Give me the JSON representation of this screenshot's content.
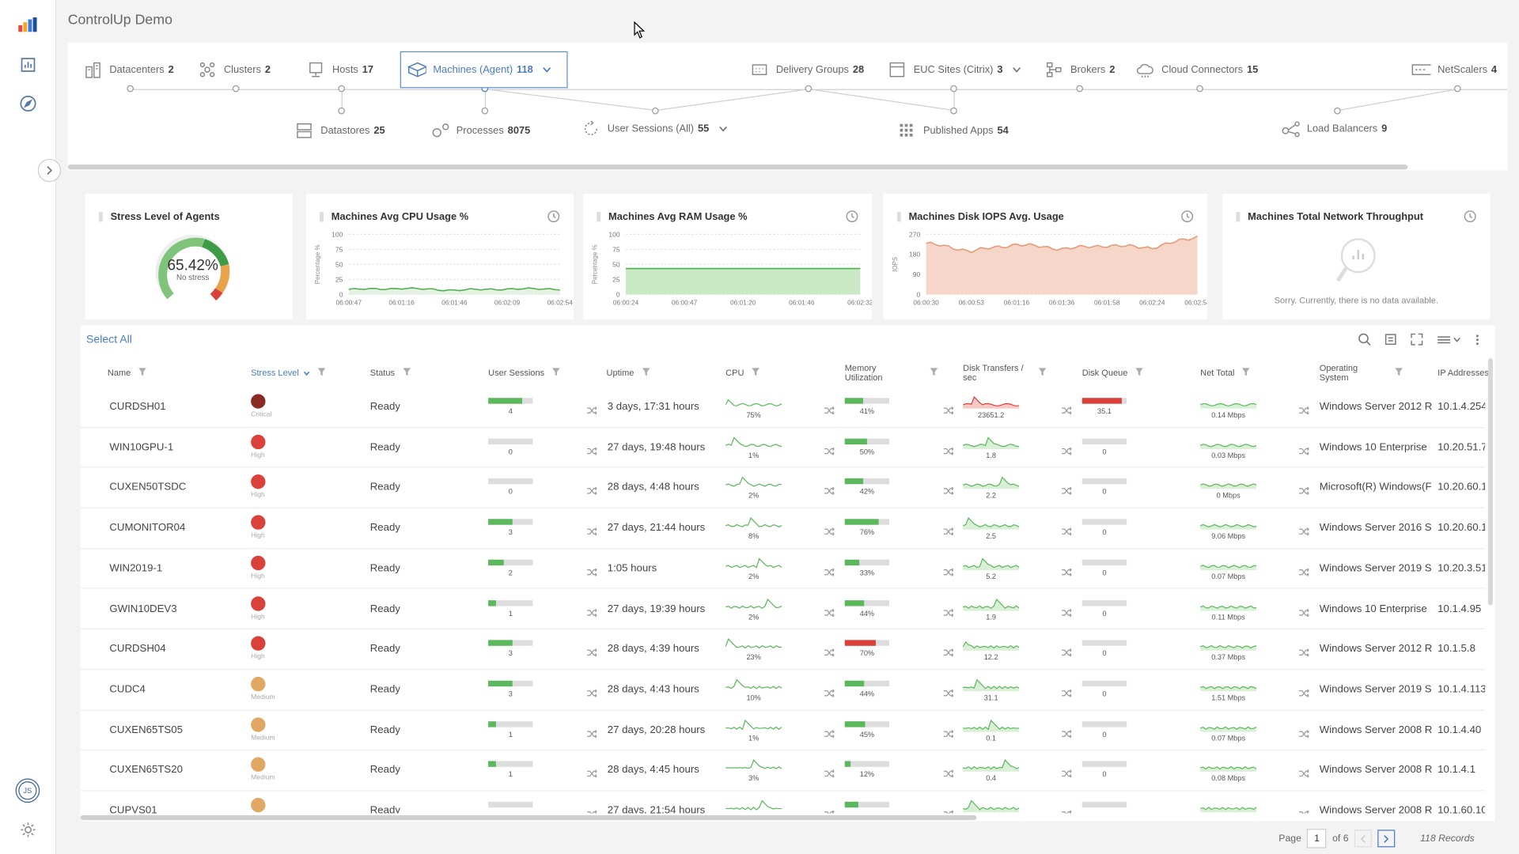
{
  "app_title": "ControlUp Demo",
  "topology": {
    "row1": [
      {
        "label": "Datacenters",
        "count": "2",
        "icon": "datacenter-icon"
      },
      {
        "label": "Clusters",
        "count": "2",
        "icon": "cluster-icon"
      },
      {
        "label": "Hosts",
        "count": "17",
        "icon": "host-icon"
      },
      {
        "label": "Machines (Agent)",
        "count": "118",
        "icon": "machine-icon"
      },
      {
        "label": "Delivery Groups",
        "count": "28",
        "icon": "delivery-group-icon"
      },
      {
        "label": "EUC Sites (Citrix)",
        "count": "3",
        "icon": "site-icon"
      },
      {
        "label": "Brokers",
        "count": "2",
        "icon": "broker-icon"
      },
      {
        "label": "Cloud Connectors",
        "count": "15",
        "icon": "cloud-icon"
      },
      {
        "label": "NetScalers",
        "count": "4",
        "icon": "netscaler-icon"
      }
    ],
    "row2": [
      {
        "label": "Datastores",
        "count": "25",
        "icon": "datastore-icon"
      },
      {
        "label": "Processes",
        "count": "8075",
        "icon": "process-icon"
      },
      {
        "label": "User Sessions (All)",
        "count": "55",
        "icon": "session-icon"
      },
      {
        "label": "Published Apps",
        "count": "54",
        "icon": "apps-icon"
      },
      {
        "label": "Load Balancers",
        "count": "9",
        "icon": "load-balancer-icon"
      }
    ]
  },
  "cards": {
    "stress": {
      "title": "Stress Level of Agents",
      "value": "65.42%",
      "sub": "No stress"
    },
    "cpu": {
      "title": "Machines Avg CPU Usage %",
      "ylabel": "Percentage %",
      "yticks": [
        "100",
        "75",
        "50",
        "25",
        "0"
      ],
      "xticks": [
        "06:00:47",
        "06:01:16",
        "06:01:46",
        "06:02:09",
        "06:02:54"
      ]
    },
    "ram": {
      "title": "Machines Avg RAM Usage %",
      "ylabel": "Percentage %",
      "yticks": [
        "100",
        "75",
        "50",
        "25",
        "0"
      ],
      "xticks": [
        "06:00:24",
        "06:00:47",
        "06:01:20",
        "06:01:46",
        "06:02:32"
      ]
    },
    "iops": {
      "title": "Machines Disk IOPS Avg. Usage",
      "ylabel": "IOPS",
      "yticks": [
        "270",
        "180",
        "90",
        "0"
      ],
      "xticks": [
        "06:00:30",
        "06:00:53",
        "06:01:16",
        "06:01:36",
        "06:01:58",
        "06:02:24",
        "06:02:54"
      ]
    },
    "net": {
      "title": "Machines Total Network Throughput",
      "empty": "Sorry. Currently, there is no data available."
    }
  },
  "chart_data": [
    {
      "type": "line",
      "title": "Machines Avg CPU Usage %",
      "ylabel": "Percentage %",
      "ylim": [
        0,
        100
      ],
      "x": [
        "06:00:47",
        "06:01:16",
        "06:01:46",
        "06:02:09",
        "06:02:54"
      ],
      "series": [
        {
          "values": [
            8,
            10,
            7,
            9,
            9
          ]
        }
      ]
    },
    {
      "type": "area",
      "title": "Machines Avg RAM Usage %",
      "ylabel": "Percentage %",
      "ylim": [
        0,
        100
      ],
      "x": [
        "06:00:24",
        "06:00:47",
        "06:01:20",
        "06:01:46",
        "06:02:32"
      ],
      "series": [
        {
          "values": [
            43,
            43,
            43,
            43,
            43
          ]
        }
      ]
    },
    {
      "type": "area",
      "title": "Machines Disk IOPS Avg. Usage",
      "ylabel": "IOPS",
      "ylim": [
        0,
        270
      ],
      "x": [
        "06:00:30",
        "06:00:53",
        "06:01:16",
        "06:01:36",
        "06:01:58",
        "06:02:24",
        "06:02:54"
      ],
      "series": [
        {
          "values": [
            230,
            195,
            225,
            205,
            220,
            210,
            260
          ]
        }
      ]
    }
  ],
  "grid": {
    "select_all": "Select All",
    "columns": [
      "Name",
      "Stress Level",
      "Status",
      "User Sessions",
      "Uptime",
      "CPU",
      "Memory Utilization",
      "Disk Transfers / sec",
      "Disk Queue",
      "Net Total",
      "Operating System",
      "IP Addresses"
    ],
    "rows": [
      {
        "name": "CURDSH01",
        "stress": "Critical",
        "status": "Ready",
        "sessions": "4",
        "sess_pct": 75,
        "uptime": "3 days, 17:31 hours",
        "cpu": "75%",
        "mem": "41%",
        "mem_pct": 41,
        "disk": "23651.2",
        "queue": "35.1",
        "queue_pct": 90,
        "net": "0.14 Mbps",
        "os": "Windows Server 2012 R",
        "ip": "10.1.4.254"
      },
      {
        "name": "WIN10GPU-1",
        "stress": "High",
        "status": "Ready",
        "sessions": "0",
        "sess_pct": 0,
        "uptime": "27 days, 19:48 hours",
        "cpu": "1%",
        "mem": "50%",
        "mem_pct": 50,
        "disk": "1.8",
        "queue": "0",
        "queue_pct": 0,
        "net": "0.03 Mbps",
        "os": "Windows 10 Enterprise",
        "ip": "10.20.51.7"
      },
      {
        "name": "CUXEN50TSDC",
        "stress": "High",
        "status": "Ready",
        "sessions": "0",
        "sess_pct": 0,
        "uptime": "28 days, 4:48 hours",
        "cpu": "2%",
        "mem": "42%",
        "mem_pct": 42,
        "disk": "2.2",
        "queue": "0",
        "queue_pct": 0,
        "net": "0 Mbps",
        "os": "Microsoft(R) Windows(F",
        "ip": "10.20.60.1"
      },
      {
        "name": "CUMONITOR04",
        "stress": "High",
        "status": "Ready",
        "sessions": "3",
        "sess_pct": 55,
        "uptime": "27 days, 21:44 hours",
        "cpu": "8%",
        "mem": "76%",
        "mem_pct": 76,
        "disk": "2.5",
        "queue": "0",
        "queue_pct": 0,
        "net": "9.06 Mbps",
        "os": "Windows Server 2016 S",
        "ip": "10.20.60.1"
      },
      {
        "name": "WIN2019-1",
        "stress": "High",
        "status": "Ready",
        "sessions": "2",
        "sess_pct": 35,
        "uptime": "1:05 hours",
        "cpu": "2%",
        "mem": "33%",
        "mem_pct": 33,
        "disk": "5.2",
        "queue": "0",
        "queue_pct": 0,
        "net": "0.07 Mbps",
        "os": "Windows Server 2019 S",
        "ip": "10.20.3.51"
      },
      {
        "name": "GWIN10DEV3",
        "stress": "High",
        "status": "Ready",
        "sessions": "1",
        "sess_pct": 18,
        "uptime": "27 days, 19:39 hours",
        "cpu": "2%",
        "mem": "44%",
        "mem_pct": 44,
        "disk": "1.9",
        "queue": "0",
        "queue_pct": 0,
        "net": "0.11 Mbps",
        "os": "Windows 10 Enterprise",
        "ip": "10.1.4.95"
      },
      {
        "name": "CURDSH04",
        "stress": "High",
        "status": "Ready",
        "sessions": "3",
        "sess_pct": 55,
        "uptime": "28 days, 4:39 hours",
        "cpu": "23%",
        "mem": "70%",
        "mem_pct": 70,
        "disk": "12.2",
        "queue": "0",
        "queue_pct": 0,
        "net": "0.37 Mbps",
        "os": "Windows Server 2012 R",
        "ip": "10.1.5.8"
      },
      {
        "name": "CUDC4",
        "stress": "Medium",
        "status": "Ready",
        "sessions": "3",
        "sess_pct": 55,
        "uptime": "28 days, 4:43 hours",
        "cpu": "10%",
        "mem": "44%",
        "mem_pct": 44,
        "disk": "31.1",
        "queue": "0",
        "queue_pct": 0,
        "net": "1.51 Mbps",
        "os": "Windows Server 2019 S",
        "ip": "10.1.4.113"
      },
      {
        "name": "CUXEN65TS05",
        "stress": "Medium",
        "status": "Ready",
        "sessions": "1",
        "sess_pct": 18,
        "uptime": "27 days, 20:28 hours",
        "cpu": "1%",
        "mem": "45%",
        "mem_pct": 45,
        "disk": "0.1",
        "queue": "0",
        "queue_pct": 0,
        "net": "0.07 Mbps",
        "os": "Windows Server 2008 R",
        "ip": "10.1.4.40"
      },
      {
        "name": "CUXEN65TS20",
        "stress": "Medium",
        "status": "Ready",
        "sessions": "1",
        "sess_pct": 18,
        "uptime": "28 days, 4:45 hours",
        "cpu": "3%",
        "mem": "12%",
        "mem_pct": 12,
        "disk": "0.4",
        "queue": "0",
        "queue_pct": 0,
        "net": "0.08 Mbps",
        "os": "Windows Server 2008 R",
        "ip": "10.1.4.1"
      },
      {
        "name": "CUPVS01",
        "stress": "Medium",
        "status": "Ready",
        "sessions": "",
        "sess_pct": 0,
        "uptime": "27 days, 21:54 hours",
        "cpu": "",
        "mem": "",
        "mem_pct": 30,
        "disk": "",
        "queue": "",
        "queue_pct": 0,
        "net": "",
        "os": "Windows Server 2008 R",
        "ip": "10.1.60.10"
      }
    ]
  },
  "pager": {
    "page_label": "Page",
    "page": "1",
    "of": "of 6",
    "records": "118 Records"
  },
  "colors": {
    "accent": "#4a7cc1",
    "green": "#5cb85c",
    "red": "#d9413a",
    "critical": "#8b2a22",
    "medium": "#e0a862",
    "iops_fill": "#f5d6c8",
    "iops_line": "#e59a78"
  },
  "user_initials": "JS"
}
